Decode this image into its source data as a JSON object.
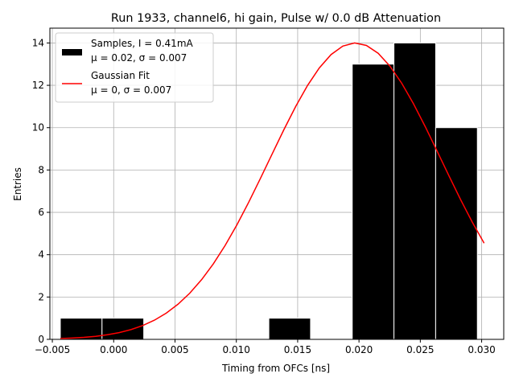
{
  "chart_data": {
    "type": "histogram",
    "title": "Run 1933, channel6, hi gain, Pulse w/ 0.0 dB Attenuation",
    "xlabel": "Timing from OFCs [ns]",
    "ylabel": "Entries",
    "xlim": [
      -0.0052,
      0.0318
    ],
    "ylim": [
      0,
      14.7
    ],
    "x_ticks": [
      -0.005,
      0.0,
      0.005,
      0.01,
      0.015,
      0.02,
      0.025,
      0.03
    ],
    "x_tick_labels": [
      "−0.005",
      "0.000",
      "0.005",
      "0.010",
      "0.015",
      "0.020",
      "0.025",
      "0.030"
    ],
    "y_ticks": [
      0,
      2,
      4,
      6,
      8,
      10,
      12,
      14
    ],
    "y_tick_labels": [
      "0",
      "2",
      "4",
      "6",
      "8",
      "10",
      "12",
      "14"
    ],
    "grid": true,
    "legend_position": "top-left",
    "bins": [
      {
        "x0": -0.00435,
        "x1": -0.00095,
        "count": 1
      },
      {
        "x0": -0.00095,
        "x1": 0.00245,
        "count": 1
      },
      {
        "x0": 0.00245,
        "x1": 0.00585,
        "count": 0
      },
      {
        "x0": 0.00585,
        "x1": 0.00925,
        "count": 0
      },
      {
        "x0": 0.00925,
        "x1": 0.01265,
        "count": 0
      },
      {
        "x0": 0.01265,
        "x1": 0.01605,
        "count": 1
      },
      {
        "x0": 0.01605,
        "x1": 0.01945,
        "count": 0
      },
      {
        "x0": 0.01945,
        "x1": 0.02285,
        "count": 13
      },
      {
        "x0": 0.02285,
        "x1": 0.02625,
        "count": 14
      },
      {
        "x0": 0.02625,
        "x1": 0.02965,
        "count": 10
      }
    ],
    "bar_color": "#000000",
    "bar_edge_color": "#ffffff",
    "gaussian_fit": {
      "amplitude": 14,
      "mean": 0.0197,
      "sigma": 0.007,
      "x_range": [
        -0.00435,
        0.0302
      ],
      "color": "#ff0000"
    },
    "legend": [
      {
        "kind": "patch",
        "line1": "Samples, I = 0.41mA",
        "line2": "μ = 0.02, σ = 0.007"
      },
      {
        "kind": "line",
        "line1": "Gaussian Fit",
        "line2": "μ = 0, σ = 0.007"
      }
    ]
  }
}
